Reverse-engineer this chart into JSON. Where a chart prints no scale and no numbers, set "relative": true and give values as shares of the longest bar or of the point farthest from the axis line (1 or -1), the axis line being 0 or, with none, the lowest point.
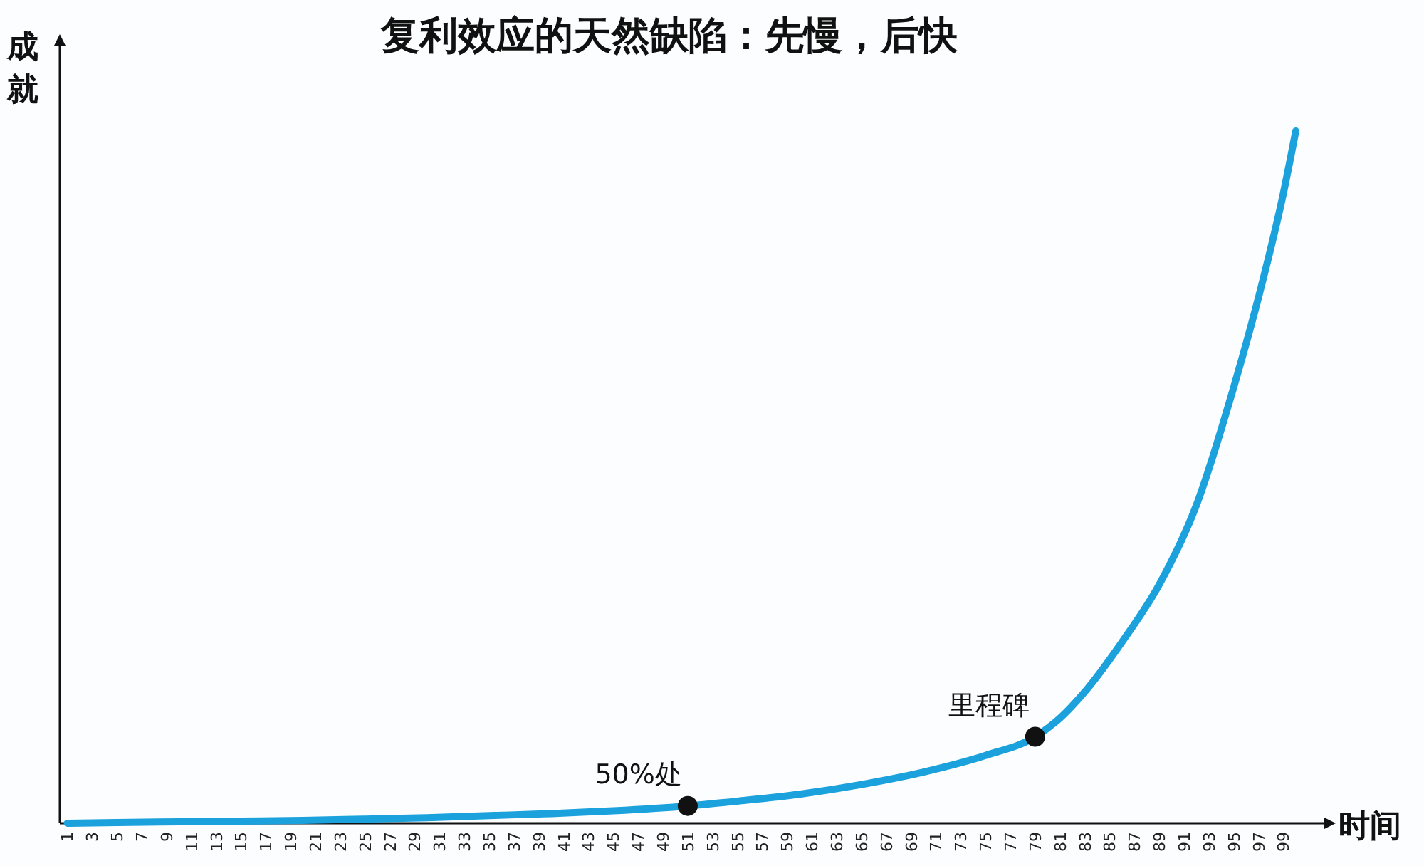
{
  "chart_data": {
    "type": "line",
    "title": "复利效应的天然缺陷：先慢，后快",
    "xlabel": "时间",
    "ylabel": "成就",
    "relative": true,
    "grid": false,
    "xlim": [
      0.4,
      102.3
    ],
    "xticks": [
      1,
      3,
      5,
      7,
      9,
      11,
      13,
      15,
      17,
      19,
      21,
      23,
      25,
      27,
      29,
      31,
      33,
      35,
      37,
      39,
      41,
      43,
      45,
      47,
      49,
      51,
      53,
      55,
      57,
      59,
      61,
      63,
      65,
      67,
      69,
      71,
      73,
      75,
      77,
      79,
      81,
      83,
      85,
      87,
      89,
      91,
      93,
      95,
      97,
      99
    ],
    "series": [
      {
        "color": "#1ba1dc",
        "marker": "none",
        "line_style": "solid",
        "x": [
          1,
          5,
          10,
          15,
          20,
          25,
          30,
          35,
          40,
          45,
          51,
          55,
          60,
          65,
          70,
          75,
          79,
          81,
          83,
          86,
          89,
          92,
          95,
          97,
          99,
          100
        ],
        "values": [
          0,
          0.001,
          0.002,
          0.003,
          0.004,
          0.006,
          0.008,
          0.011,
          0.014,
          0.018,
          0.025,
          0.032,
          0.042,
          0.056,
          0.074,
          0.098,
          0.125,
          0.152,
          0.19,
          0.262,
          0.345,
          0.46,
          0.63,
          0.76,
          0.91,
          1
        ]
      },
      {
        "type": "scatter",
        "color": "#111111",
        "marker": "circle",
        "x": [
          51,
          79
        ],
        "values": [
          0.025,
          0.125
        ]
      }
    ],
    "annotations": [
      {
        "text": "50%处",
        "x": 51,
        "y": 0.025
      },
      {
        "text": "里程碑",
        "x": 79,
        "y": 0.125
      }
    ]
  }
}
